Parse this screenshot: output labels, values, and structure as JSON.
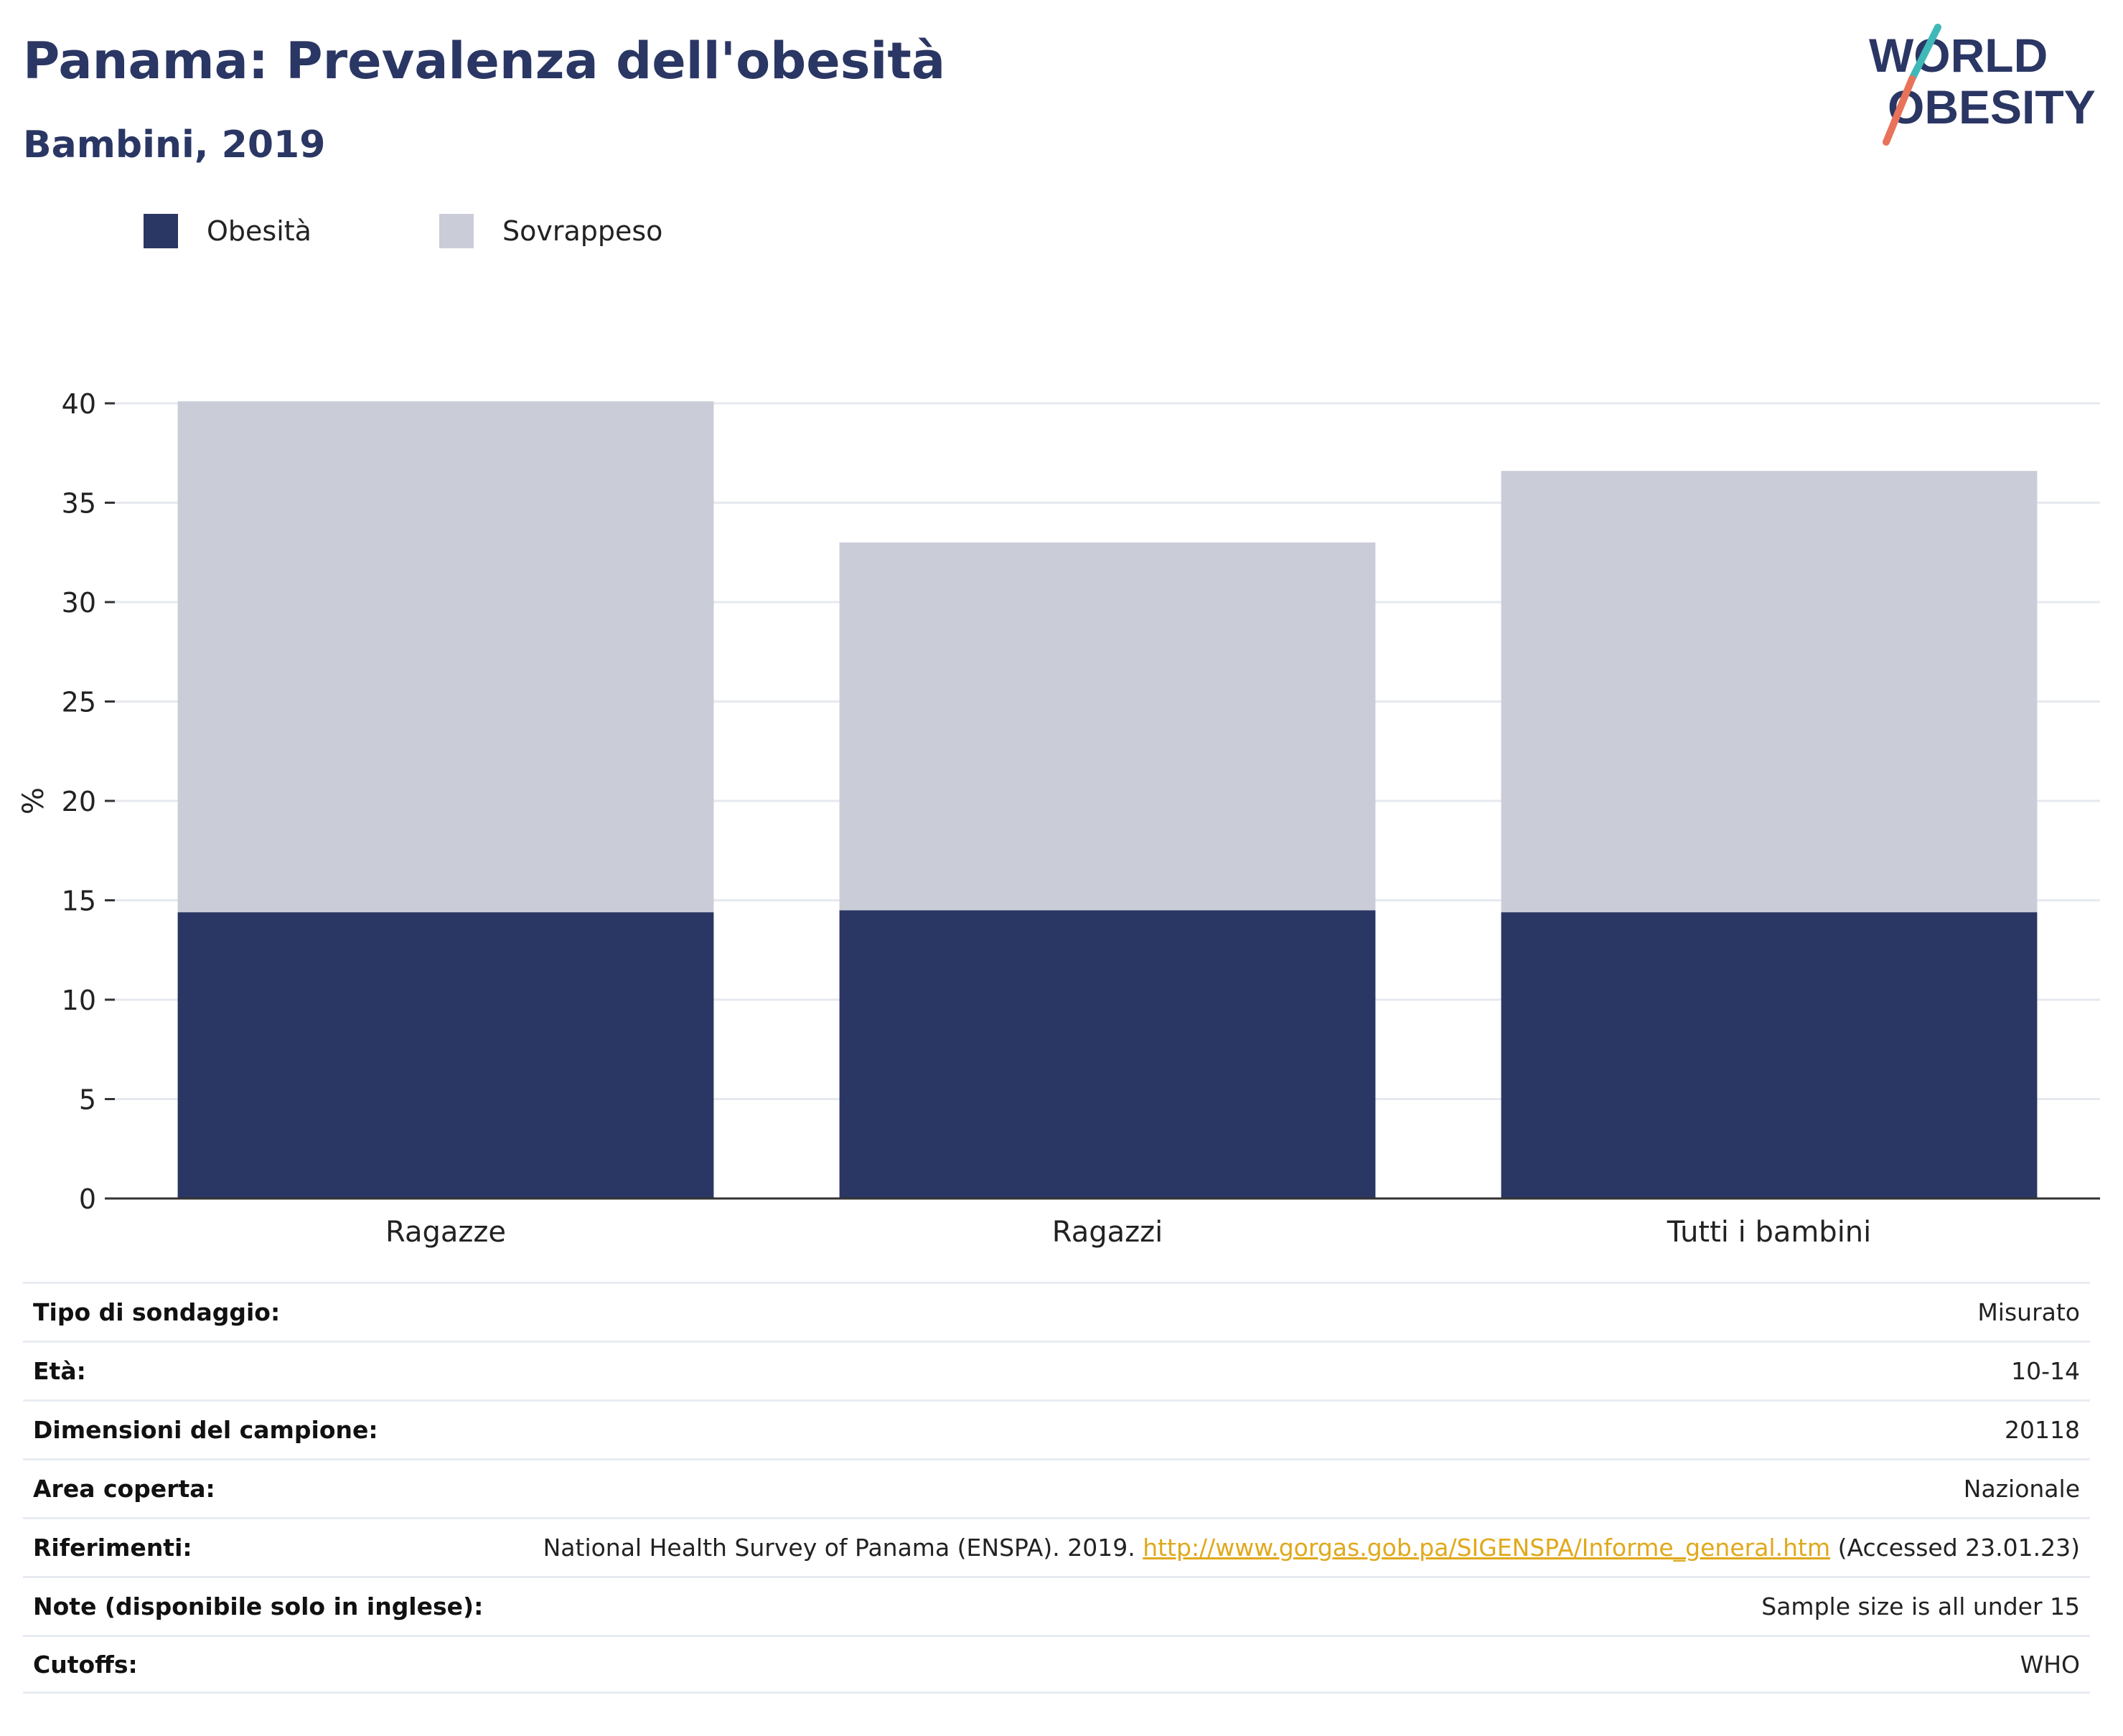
{
  "header": {
    "title": "Panama: Prevalenza dell'obesità",
    "subtitle": "Bambini, 2019",
    "logo_line1": "WORLD",
    "logo_line2": "OBESITY"
  },
  "legend": [
    {
      "label": "Obesità",
      "color": "#2a3663"
    },
    {
      "label": "Sovrappeso",
      "color": "#caccd8"
    }
  ],
  "chart_data": {
    "type": "bar",
    "stacked": true,
    "categories": [
      "Ragazze",
      "Ragazzi",
      "Tutti i bambini"
    ],
    "series": [
      {
        "name": "Obesità",
        "color": "#2a3663",
        "values": [
          14.4,
          14.5,
          14.4
        ]
      },
      {
        "name": "Sovrappeso",
        "color": "#caccd8",
        "values": [
          25.7,
          18.5,
          22.2
        ]
      }
    ],
    "ylabel": "%",
    "ylim": [
      0,
      40
    ],
    "yticks": [
      0,
      5,
      10,
      15,
      20,
      25,
      30,
      35,
      40
    ],
    "grid": true,
    "legend_position": "top-left"
  },
  "info": {
    "rows": [
      {
        "label": "Tipo di sondaggio:",
        "value": "Misurato"
      },
      {
        "label": "Età:",
        "value": "10-14"
      },
      {
        "label": "Dimensioni del campione:",
        "value": "20118"
      },
      {
        "label": "Area coperta:",
        "value": "Nazionale"
      },
      {
        "label": "Riferimenti:",
        "value_pre": "National Health Survey of Panama (ENSPA). 2019. ",
        "link": "http://www.gorgas.gob.pa/SIGENSPA/Informe_general.htm",
        "value_post": " (Accessed 23.01.23)"
      },
      {
        "label": "Note (disponibile solo in inglese):",
        "value": "Sample size is all under 15"
      },
      {
        "label": "Cutoffs:",
        "value": "WHO"
      }
    ]
  }
}
